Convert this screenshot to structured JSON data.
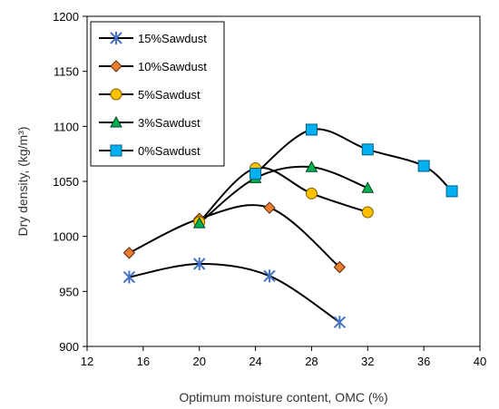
{
  "chart_data": {
    "type": "scatter",
    "title": "",
    "xlabel": "Optimum moisture content, OMC (%)",
    "ylabel": "Dry density, (kg/m³)",
    "xlim": [
      12,
      40
    ],
    "ylim": [
      900,
      1200
    ],
    "xticks": [
      12,
      16,
      20,
      24,
      28,
      32,
      36,
      40
    ],
    "yticks": [
      900,
      950,
      1000,
      1050,
      1100,
      1150,
      1200
    ],
    "grid": false,
    "legend_position": "top-left",
    "series": [
      {
        "name": "15%Sawdust",
        "marker": "asterisk",
        "color": "#4472c4",
        "line_color": "#000000",
        "x": [
          15,
          20,
          25,
          30
        ],
        "y": [
          963,
          975,
          964,
          922
        ]
      },
      {
        "name": "10%Sawdust",
        "marker": "diamond",
        "color": "#ed7d31",
        "line_color": "#000000",
        "x": [
          15,
          20,
          25,
          30
        ],
        "y": [
          985,
          1016,
          1026,
          972
        ]
      },
      {
        "name": "5%Sawdust",
        "marker": "circle",
        "color": "#ffc000",
        "line_color": "#000000",
        "x": [
          20,
          24,
          28,
          32
        ],
        "y": [
          1013,
          1062,
          1039,
          1022
        ]
      },
      {
        "name": "3%Sawdust",
        "marker": "triangle",
        "color": "#00b050",
        "line_color": "#000000",
        "x": [
          20,
          24,
          28,
          32
        ],
        "y": [
          1012,
          1053,
          1063,
          1044
        ]
      },
      {
        "name": "0%Sawdust",
        "marker": "square",
        "color": "#00b0f0",
        "line_color": "#000000",
        "x": [
          24,
          28,
          32,
          36,
          38
        ],
        "y": [
          1057,
          1097,
          1079,
          1064,
          1041
        ]
      }
    ]
  }
}
